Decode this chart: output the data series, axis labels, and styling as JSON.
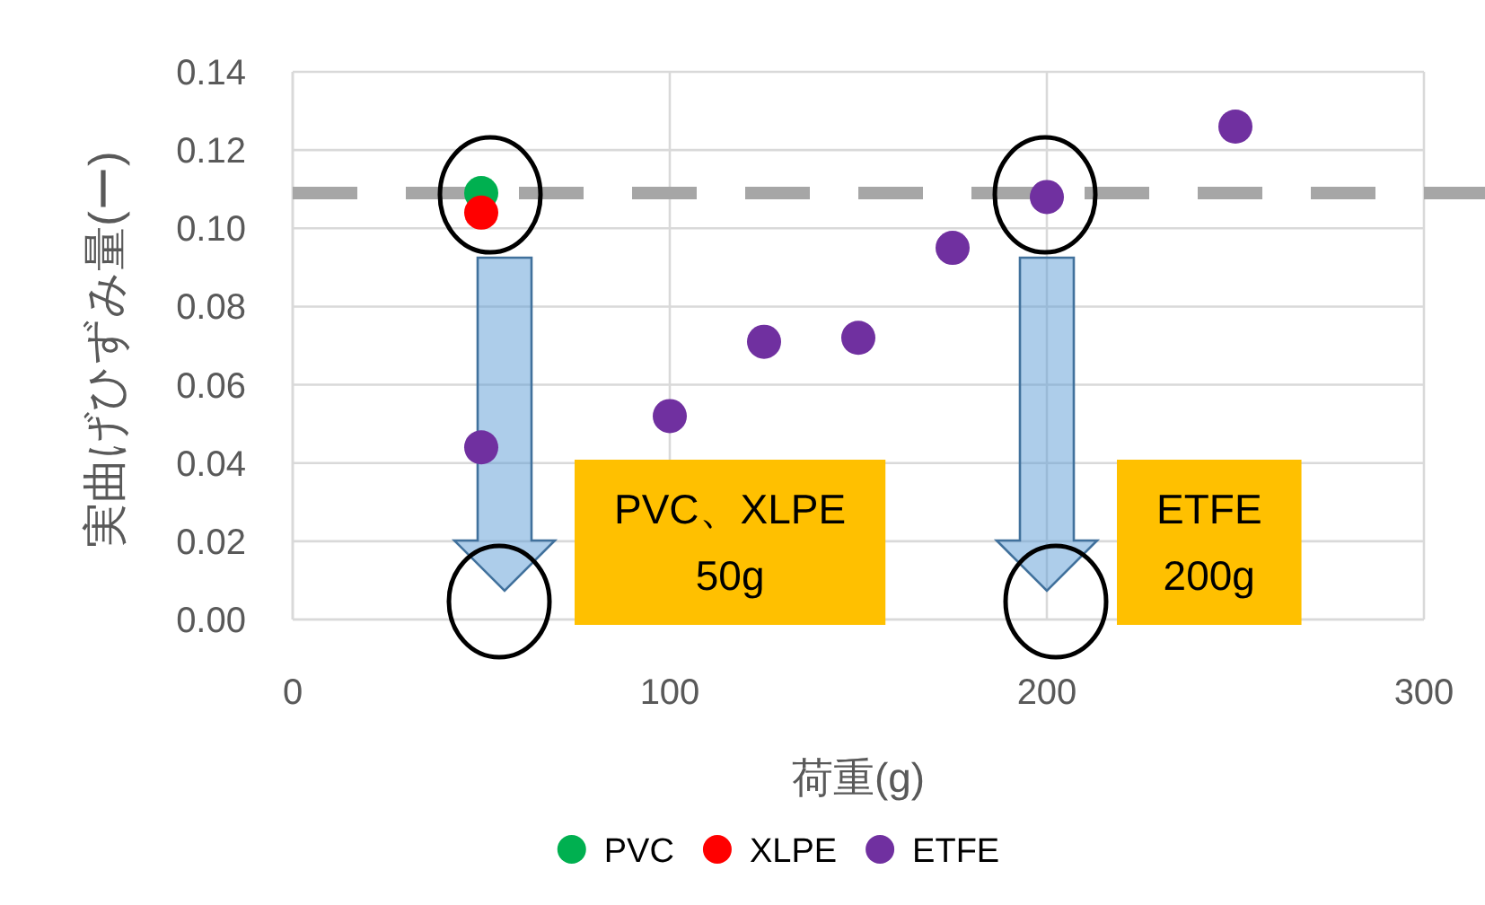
{
  "chart_data": {
    "type": "scatter",
    "xlabel": "荷重(g)",
    "ylabel": "実曲げひずみ量(ー)",
    "series": [
      {
        "name": "PVC",
        "color": "#00b050",
        "x": [
          50
        ],
        "values": [
          0.109
        ]
      },
      {
        "name": "XLPE",
        "color": "#ff0000",
        "x": [
          50
        ],
        "values": [
          0.104
        ]
      },
      {
        "name": "ETFE",
        "color": "#7030a0",
        "x": [
          50,
          100,
          125,
          150,
          175,
          200,
          250
        ],
        "values": [
          0.044,
          0.052,
          0.071,
          0.072,
          0.095,
          0.108,
          0.126
        ]
      }
    ],
    "xlim": [
      0,
      300
    ],
    "xticks": [
      0,
      100,
      200,
      300
    ],
    "ylim": [
      0,
      0.14
    ],
    "yticks": [
      {
        "value": 0,
        "label": "0.00"
      },
      {
        "value": 0.02,
        "label": "0.02"
      },
      {
        "value": 0.04,
        "label": "0.04"
      },
      {
        "value": 0.06,
        "label": "0.06"
      },
      {
        "value": 0.08,
        "label": "0.08"
      },
      {
        "value": 0.1,
        "label": "0.10"
      },
      {
        "value": 0.12,
        "label": "0.12"
      },
      {
        "value": 0.14,
        "label": "0.14"
      }
    ],
    "ref_lines": [
      {
        "axis": "y",
        "value": 0.109,
        "color": "#a6a6a6",
        "line_style": "dashed"
      }
    ],
    "annotations": [
      "PVC、XLPE\n50g",
      "ETFE\n200g"
    ],
    "grid": true,
    "legend": "bottom",
    "marker": "circle"
  }
}
